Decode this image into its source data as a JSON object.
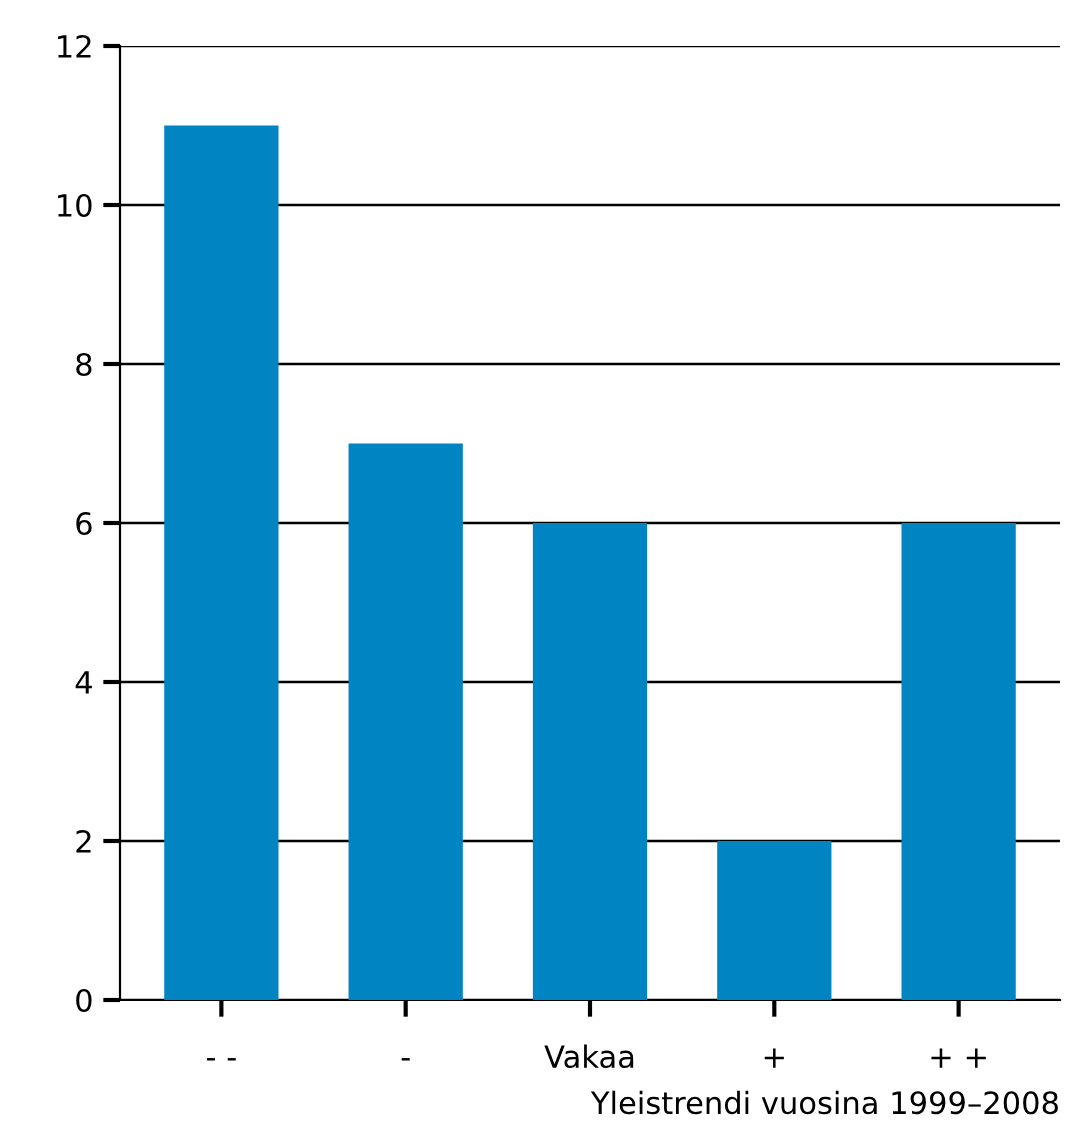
{
  "chart_data": {
    "type": "bar",
    "xlabel": "Yleistrendi vuosina 1999–2008",
    "categories": [
      "- -",
      "-",
      "Vakaa",
      "+",
      "+ +"
    ],
    "values": [
      11,
      7,
      6,
      2,
      6
    ],
    "color": "#0084c2",
    "ylim": [
      0,
      12
    ],
    "yticks": [
      0,
      2,
      4,
      6,
      8,
      10,
      12
    ],
    "grid": "y",
    "legend": false
  }
}
